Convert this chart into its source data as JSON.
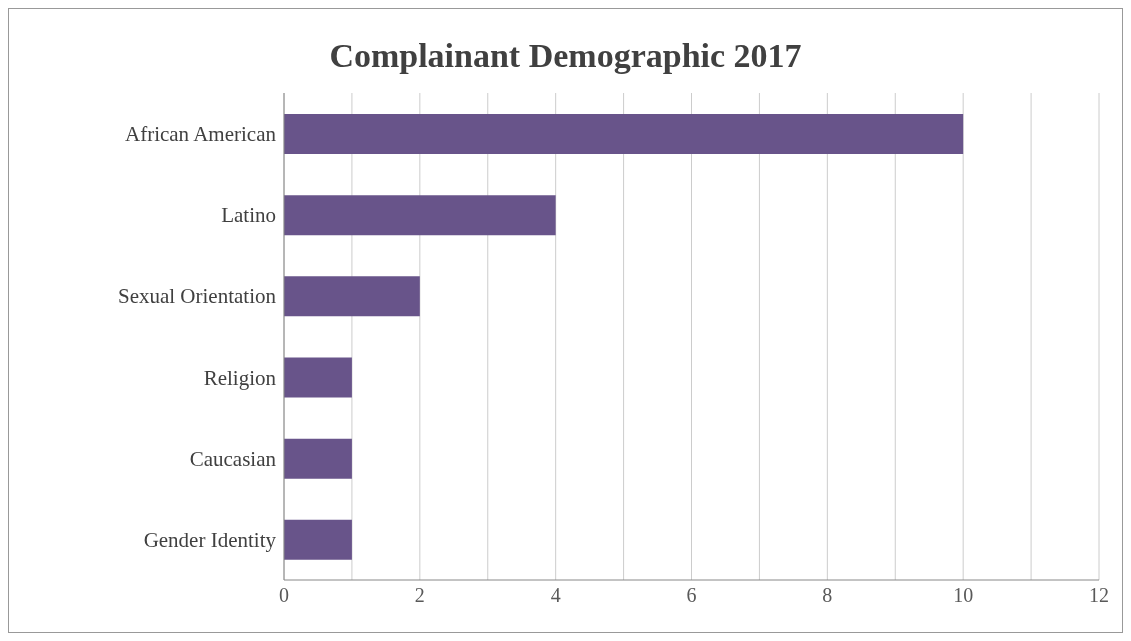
{
  "chart_data": {
    "type": "bar",
    "orientation": "horizontal",
    "title": "Complainant Demographic 2017",
    "categories": [
      "African American",
      "Latino",
      "Sexual Orientation",
      "Religion",
      "Caucasian",
      "Gender Identity"
    ],
    "values": [
      10,
      4,
      2,
      1,
      1,
      1
    ],
    "color": "#68548a",
    "xlim": [
      0,
      12
    ],
    "xticks": [
      0,
      {
        "value": 1,
        "label": null
      },
      2,
      {
        "value": 3,
        "label": null
      },
      4,
      {
        "value": 5,
        "label": null
      },
      6,
      {
        "value": 7,
        "label": null
      },
      8,
      {
        "value": 9,
        "label": null
      },
      10,
      {
        "value": 11,
        "label": null
      },
      12
    ],
    "grid": "x"
  }
}
